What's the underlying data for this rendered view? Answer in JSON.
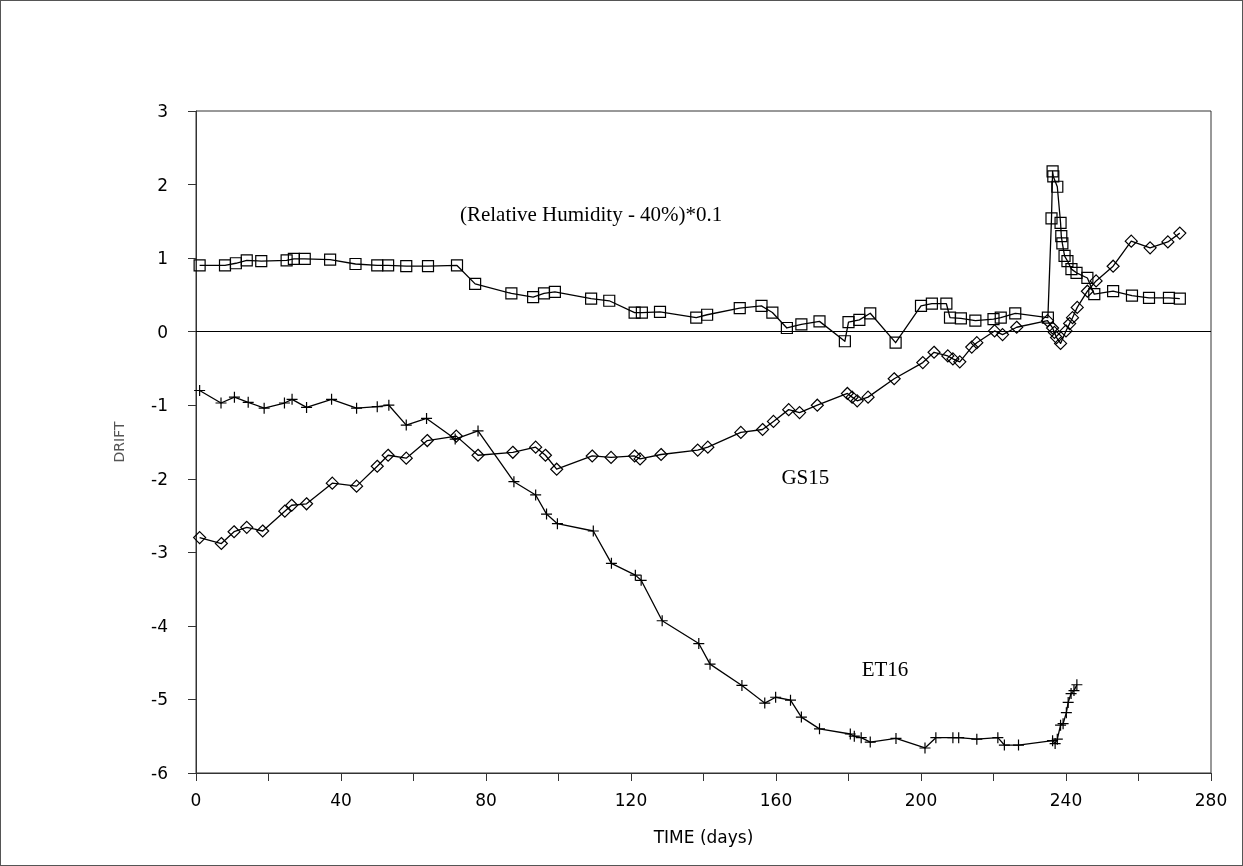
{
  "chart_data": {
    "type": "line",
    "xlabel": "TIME (days)",
    "ylabel": "DRIFT",
    "xlim": [
      0,
      280
    ],
    "xticks": [
      0,
      {
        "value": 20,
        "label": null
      },
      40,
      {
        "value": 60,
        "label": null
      },
      80,
      {
        "value": 100,
        "label": null
      },
      120,
      {
        "value": 140,
        "label": null
      },
      160,
      {
        "value": 180,
        "label": null
      },
      200,
      {
        "value": 220,
        "label": null
      },
      240,
      {
        "value": 260,
        "label": null
      },
      280
    ],
    "ylim": [
      -6,
      3
    ],
    "yticks": [
      -6,
      -5,
      -4,
      -3,
      -2,
      -1,
      0,
      1,
      2,
      3
    ],
    "grid": false,
    "line_style": "solid",
    "ref_lines": [
      {
        "axis": "y",
        "value": 0,
        "color": "#000000"
      }
    ],
    "series": [
      {
        "name": "(Relative Humidity - 40%)*0.1",
        "color": "#000000",
        "marker": "square",
        "x": [
          1,
          8,
          11,
          14,
          18,
          25,
          27,
          30,
          37,
          44,
          50,
          53,
          58,
          64,
          72,
          77,
          87,
          93,
          96,
          99,
          109,
          114,
          121,
          123,
          128,
          138,
          141,
          150,
          156,
          159,
          163,
          167,
          172,
          179,
          180,
          183,
          186,
          193,
          200,
          203,
          207,
          208,
          211,
          215,
          220,
          222,
          226,
          235,
          236,
          236.3,
          236.5,
          237.6,
          238.5,
          238.7,
          239,
          239.6,
          240.4,
          241.5,
          242.9,
          245.9,
          247.8,
          253,
          258.2,
          262.9,
          268.4,
          271.4
        ],
        "values": [
          0.9,
          0.9,
          0.93,
          0.97,
          0.96,
          0.97,
          0.99,
          0.99,
          0.98,
          0.92,
          0.9,
          0.9,
          0.89,
          0.89,
          0.9,
          0.65,
          0.52,
          0.47,
          0.52,
          0.54,
          0.45,
          0.42,
          0.26,
          0.26,
          0.27,
          0.19,
          0.23,
          0.32,
          0.35,
          0.26,
          0.05,
          0.1,
          0.14,
          -0.13,
          0.13,
          0.16,
          0.25,
          -0.15,
          0.35,
          0.38,
          0.38,
          0.19,
          0.18,
          0.15,
          0.17,
          0.19,
          0.25,
          0.19,
          1.54,
          2.18,
          2.11,
          1.97,
          1.48,
          1.3,
          1.2,
          1.03,
          0.96,
          0.85,
          0.8,
          0.73,
          0.51,
          0.55,
          0.49,
          0.46,
          0.46,
          0.45
        ]
      },
      {
        "name": "GS15",
        "color": "#000000",
        "marker": "diamond",
        "x": [
          1,
          7,
          10.5,
          14,
          18.4,
          24.5,
          26.4,
          30.5,
          37.6,
          44.3,
          50,
          53,
          58,
          63.8,
          71.8,
          77.8,
          87.4,
          93.7,
          96.4,
          99.5,
          109.3,
          114.5,
          121,
          122.5,
          128.3,
          138.4,
          141.2,
          150.3,
          156.3,
          159.3,
          163.5,
          166.5,
          171.4,
          179.7,
          181,
          182.4,
          185.4,
          192.6,
          200.5,
          203.6,
          207.4,
          208.8,
          210.7,
          214,
          215.4,
          220.3,
          222.5,
          226.4,
          234.9,
          236.3,
          236.8,
          237.4,
          238.5,
          240,
          241,
          241.8,
          243.1,
          245.9,
          248.3,
          253,
          258,
          263.2,
          268.1,
          271.4
        ],
        "values": [
          -2.8,
          -2.88,
          -2.72,
          -2.66,
          -2.71,
          -2.44,
          -2.36,
          -2.34,
          -2.06,
          -2.1,
          -1.83,
          -1.68,
          -1.72,
          -1.48,
          -1.42,
          -1.68,
          -1.64,
          -1.57,
          -1.68,
          -1.87,
          -1.69,
          -1.71,
          -1.69,
          -1.73,
          -1.67,
          -1.61,
          -1.57,
          -1.37,
          -1.33,
          -1.22,
          -1.06,
          -1.1,
          -1.0,
          -0.84,
          -0.89,
          -0.94,
          -0.89,
          -0.64,
          -0.42,
          -0.28,
          -0.33,
          -0.37,
          -0.41,
          -0.21,
          -0.15,
          0.01,
          -0.04,
          0.06,
          0.15,
          0.05,
          -0.01,
          -0.08,
          -0.16,
          0.01,
          0.11,
          0.19,
          0.33,
          0.55,
          0.69,
          0.89,
          1.23,
          1.14,
          1.22,
          1.34
        ]
      },
      {
        "name": "ET16",
        "color": "#000000",
        "marker": "cross",
        "x": [
          1,
          6.9,
          10.6,
          14.4,
          18.8,
          24.4,
          26.5,
          30.5,
          37.4,
          44.3,
          50,
          53.2,
          58,
          63.6,
          71.5,
          77.8,
          87.7,
          93.7,
          96.7,
          99.7,
          109.6,
          114.6,
          121.2,
          122.8,
          128.6,
          138.7,
          141.8,
          150.6,
          156.9,
          159.9,
          164,
          167,
          172,
          180.5,
          181.6,
          183.5,
          186,
          193.1,
          201.1,
          204.1,
          208.8,
          210.4,
          215.4,
          221.2,
          223,
          226.9,
          236.3,
          237,
          237.6,
          238.5,
          239.2,
          240.1,
          240.6,
          241.4,
          242.2,
          243
        ],
        "values": [
          -0.8,
          -0.97,
          -0.89,
          -0.96,
          -1.04,
          -0.97,
          -0.92,
          -1.03,
          -0.92,
          -1.04,
          -1.02,
          -1.0,
          -1.27,
          -1.18,
          -1.46,
          -1.35,
          -2.04,
          -2.22,
          -2.48,
          -2.61,
          -2.71,
          -3.15,
          -3.31,
          -3.38,
          -3.93,
          -4.24,
          -4.52,
          -4.81,
          -5.05,
          -4.97,
          -5.01,
          -5.24,
          -5.4,
          -5.47,
          -5.5,
          -5.52,
          -5.58,
          -5.53,
          -5.66,
          -5.52,
          -5.52,
          -5.52,
          -5.54,
          -5.52,
          -5.62,
          -5.62,
          -5.56,
          -5.6,
          -5.54,
          -5.35,
          -5.33,
          -5.18,
          -5.04,
          -4.92,
          -4.88,
          -4.8
        ]
      }
    ]
  }
}
